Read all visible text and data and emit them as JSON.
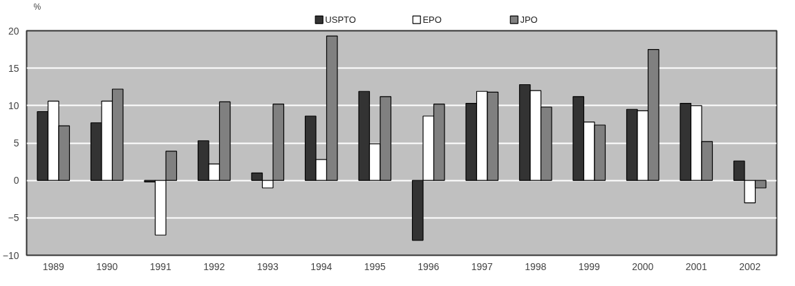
{
  "chart_data": {
    "type": "bar",
    "ylabel": "%",
    "categories": [
      "1989",
      "1990",
      "1991",
      "1992",
      "1993",
      "1994",
      "1995",
      "1996",
      "1997",
      "1998",
      "1999",
      "2000",
      "2001",
      "2002"
    ],
    "series": [
      {
        "name": "USPTO",
        "color": "#333333",
        "values": [
          9.2,
          7.7,
          -0.2,
          5.3,
          1.0,
          8.6,
          11.9,
          -8.0,
          10.3,
          12.8,
          11.2,
          9.5,
          10.3,
          2.6
        ]
      },
      {
        "name": "EPO",
        "color": "#ffffff",
        "values": [
          10.6,
          10.6,
          -7.3,
          2.2,
          -1.0,
          2.8,
          4.9,
          8.6,
          11.9,
          12.0,
          7.8,
          9.3,
          10.0,
          -3.0
        ]
      },
      {
        "name": "JPO",
        "color": "#808080",
        "values": [
          7.3,
          12.2,
          3.9,
          10.5,
          10.2,
          19.3,
          11.2,
          10.2,
          11.8,
          9.8,
          7.4,
          17.5,
          5.2,
          -1.0
        ]
      }
    ],
    "ylim": [
      -10,
      20
    ],
    "yticks": [
      -10,
      -5,
      0,
      5,
      10,
      15,
      20
    ],
    "grid": "y",
    "legend": "top"
  }
}
